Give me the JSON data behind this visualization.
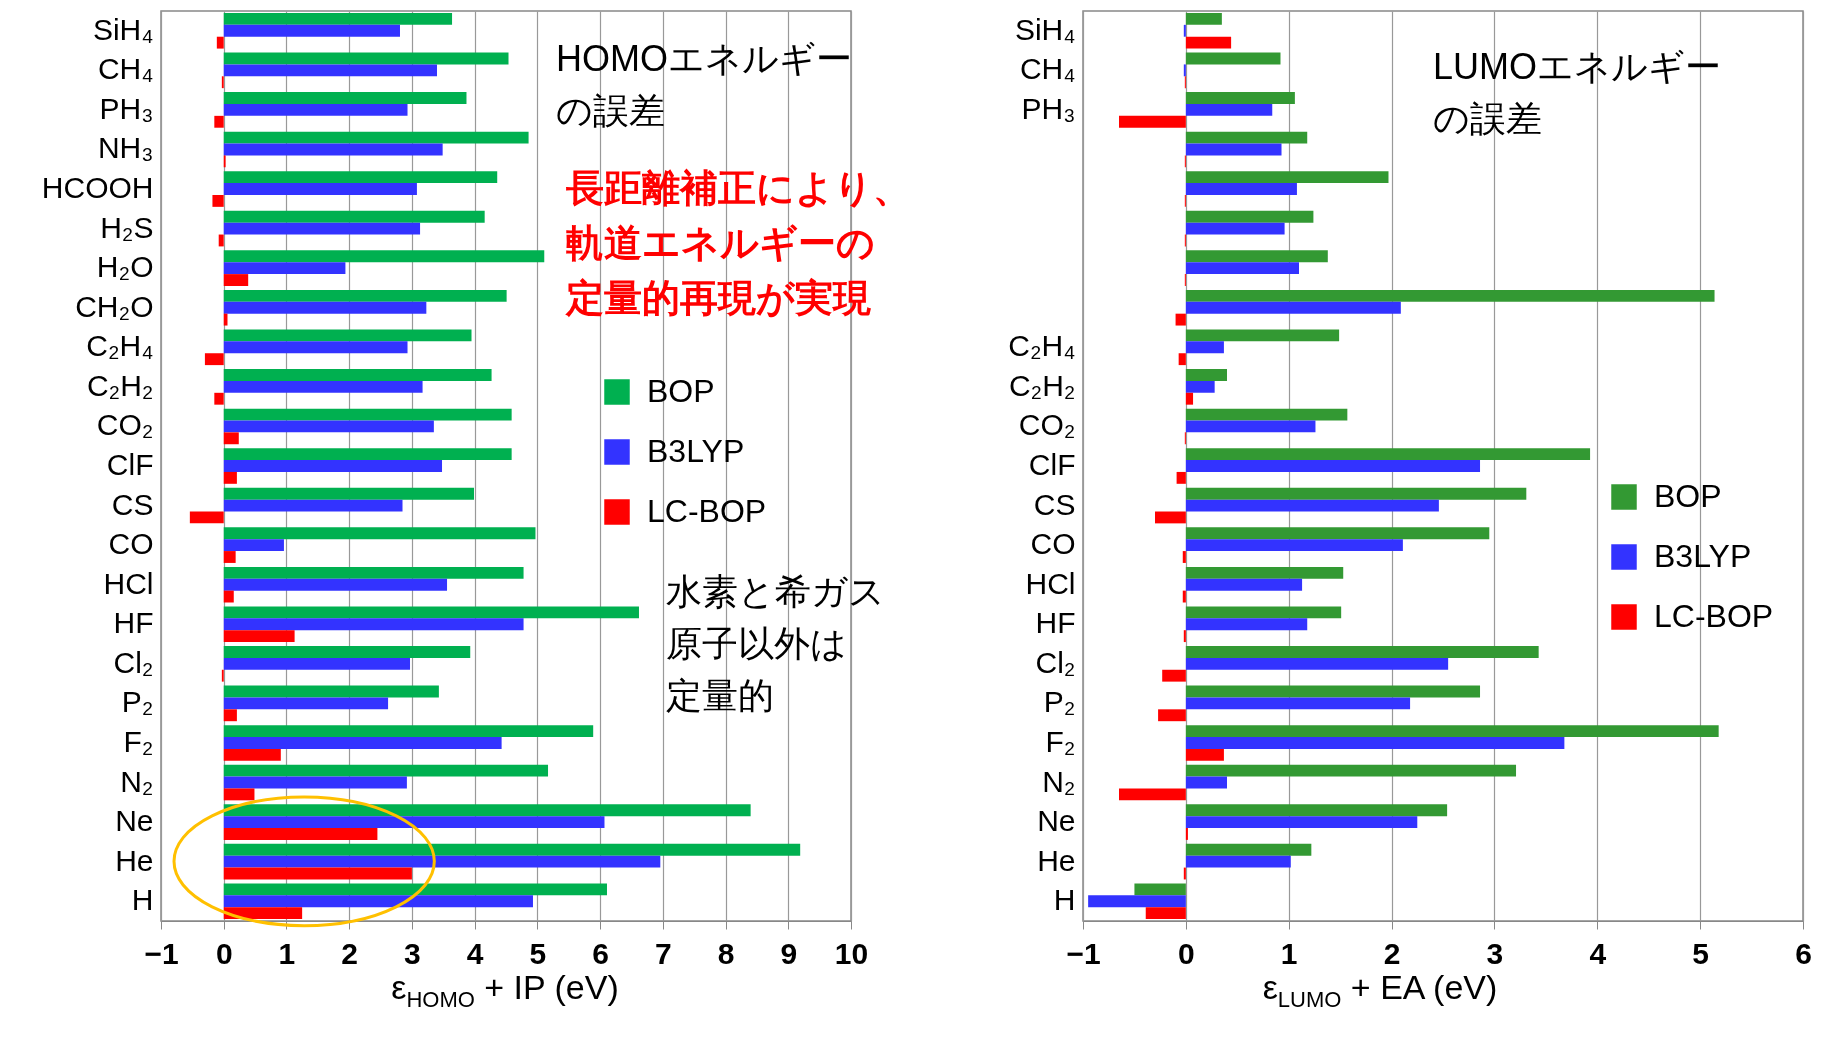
{
  "chart_data": [
    {
      "type": "bar",
      "orientation": "horizontal",
      "xlabel": "ε$_{HOMO}$ + IP (eV)",
      "xlim": [
        -1,
        10
      ],
      "xticks": [
        -1,
        0,
        1,
        2,
        3,
        4,
        5,
        6,
        7,
        8,
        9,
        10
      ],
      "grid": "x",
      "legend": "right",
      "categories": [
        "SiH₄",
        "CH₄",
        "PH₃",
        "NH₃",
        "HCOOH",
        "H₂S",
        "H₂O",
        "CH₂O",
        "C₂H₄",
        "C₂H₂",
        "CO₂",
        "ClF",
        "CS",
        "CO",
        "HCl",
        "HF",
        "Cl₂",
        "P₂",
        "F₂",
        "N₂",
        "Ne",
        "He",
        "H"
      ],
      "series": [
        {
          "name": "BOP",
          "color": "#00b050",
          "values": [
            3.64,
            4.54,
            3.87,
            4.86,
            4.36,
            4.16,
            5.11,
            4.51,
            3.95,
            4.27,
            4.59,
            4.59,
            3.99,
            4.97,
            4.78,
            6.62,
            3.93,
            3.43,
            5.89,
            5.17,
            8.4,
            9.19,
            6.11
          ]
        },
        {
          "name": "B3LYP",
          "color": "#3333ff",
          "values": [
            2.81,
            3.4,
            2.93,
            3.49,
            3.08,
            3.13,
            1.94,
            3.23,
            2.93,
            3.17,
            3.35,
            3.48,
            2.85,
            0.96,
            3.56,
            4.78,
            2.97,
            2.62,
            4.43,
            2.92,
            6.07,
            6.96,
            4.93
          ]
        },
        {
          "name": "LC-BOP",
          "color": "#ff0000",
          "values": [
            -0.11,
            -0.03,
            -0.15,
            0.03,
            -0.18,
            -0.08,
            0.39,
            0.06,
            -0.3,
            -0.15,
            0.24,
            0.21,
            -0.54,
            0.19,
            0.16,
            1.13,
            -0.03,
            0.21,
            0.91,
            0.49,
            2.45,
            3.0,
            1.25
          ]
        }
      ],
      "annotations": [
        "HOMOエネルギーの誤差",
        "長距離補正により、軌道エネルギーの定量的再現が実現",
        "水素と希ガス原子以外は定量的"
      ]
    },
    {
      "type": "bar",
      "orientation": "horizontal",
      "xlabel": "ε$_{LUMO}$ + EA (eV)",
      "xlim": [
        -1,
        6
      ],
      "xticks": [
        -1,
        0,
        1,
        2,
        3,
        4,
        5,
        6
      ],
      "grid": "x",
      "legend": "right",
      "categories": [
        "SiH₄",
        "CH₄",
        "PH₃",
        null,
        null,
        null,
        null,
        null,
        "C₂H₄",
        "C₂H₂",
        "CO₂",
        "ClF",
        "CS",
        "CO",
        "HCl",
        "HF",
        "Cl₂",
        "P₂",
        "F₂",
        "N₂",
        "Ne",
        "He",
        "H"
      ],
      "series": [
        {
          "name": "BOP",
          "color": "#339933",
          "values": [
            0.35,
            0.92,
            1.06,
            1.18,
            1.97,
            1.24,
            1.38,
            5.14,
            1.49,
            0.4,
            1.57,
            3.93,
            3.31,
            2.95,
            1.53,
            1.51,
            3.43,
            2.86,
            5.18,
            3.21,
            2.54,
            1.22,
            -0.5
          ]
        },
        {
          "name": "B3LYP",
          "color": "#3333ff",
          "values": [
            -0.02,
            -0.02,
            0.84,
            0.93,
            1.08,
            0.96,
            1.1,
            2.09,
            0.37,
            0.28,
            1.26,
            2.86,
            2.46,
            2.11,
            1.13,
            1.18,
            2.55,
            2.18,
            3.68,
            0.4,
            2.25,
            1.02,
            -0.95
          ]
        },
        {
          "name": "LC-BOP",
          "color": "#ff0000",
          "values": [
            0.44,
            -0.01,
            -0.65,
            -0.01,
            -0.01,
            -0.01,
            -0.01,
            -0.1,
            -0.07,
            0.07,
            -0.01,
            -0.09,
            -0.3,
            -0.03,
            -0.03,
            -0.02,
            -0.23,
            -0.27,
            0.37,
            -0.65,
            0.02,
            -0.02,
            -0.39
          ]
        }
      ],
      "annotations": [
        "LUMOエネルギーの誤差"
      ]
    }
  ]
}
